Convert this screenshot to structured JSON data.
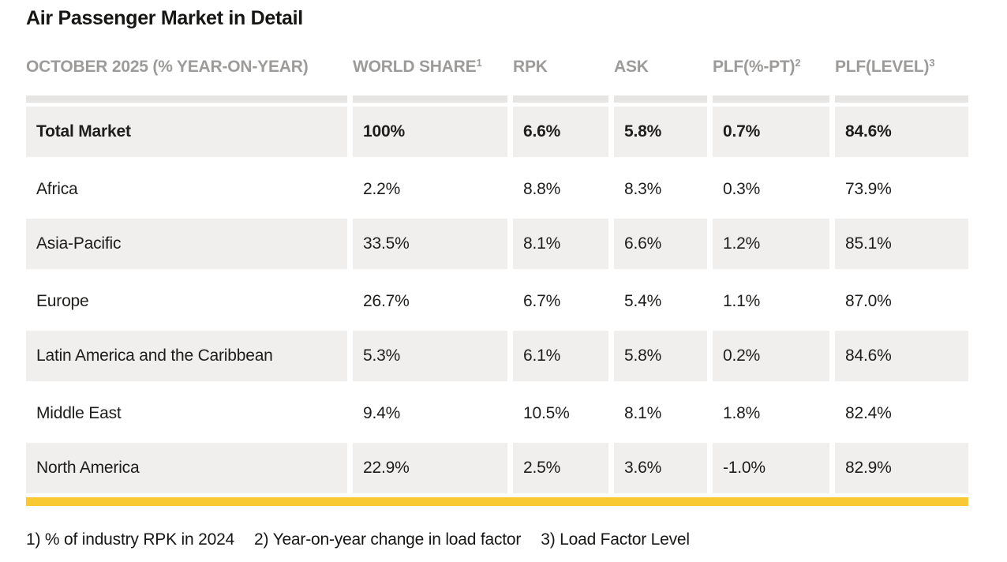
{
  "title": "Air Passenger Market in Detail",
  "table": {
    "columns": [
      {
        "label": "OCTOBER 2025 (% YEAR-ON-YEAR)",
        "sup": ""
      },
      {
        "label": "WORLD SHARE",
        "sup": "1"
      },
      {
        "label": "RPK",
        "sup": ""
      },
      {
        "label": "ASK",
        "sup": ""
      },
      {
        "label": "PLF(%-PT)",
        "sup": "2"
      },
      {
        "label": "PLF(LEVEL)",
        "sup": "3"
      }
    ],
    "rows": [
      {
        "region": "Total Market",
        "world_share": "100%",
        "rpk": "6.6%",
        "ask": "5.8%",
        "plf_pt": "0.7%",
        "plf_level": "84.6%"
      },
      {
        "region": "Africa",
        "world_share": "2.2%",
        "rpk": "8.8%",
        "ask": "8.3%",
        "plf_pt": "0.3%",
        "plf_level": "73.9%"
      },
      {
        "region": "Asia-Pacific",
        "world_share": "33.5%",
        "rpk": "8.1%",
        "ask": "6.6%",
        "plf_pt": "1.2%",
        "plf_level": "85.1%"
      },
      {
        "region": "Europe",
        "world_share": "26.7%",
        "rpk": "6.7%",
        "ask": "5.4%",
        "plf_pt": "1.1%",
        "plf_level": "87.0%"
      },
      {
        "region": "Latin America and the Caribbean",
        "world_share": "5.3%",
        "rpk": "6.1%",
        "ask": "5.8%",
        "plf_pt": "0.2%",
        "plf_level": "84.6%"
      },
      {
        "region": "Middle East",
        "world_share": "9.4%",
        "rpk": "10.5%",
        "ask": "8.1%",
        "plf_pt": "1.8%",
        "plf_level": "82.4%"
      },
      {
        "region": "North America",
        "world_share": "22.9%",
        "rpk": "2.5%",
        "ask": "3.6%",
        "plf_pt": "-1.0%",
        "plf_level": "82.9%"
      }
    ]
  },
  "footnotes": [
    "1) % of industry RPK in 2024",
    "2) Year-on-year change in load factor",
    "3) Load Factor Level"
  ],
  "colors": {
    "accent_yellow": "#f8c932",
    "row_shade": "#f0efee",
    "strip_shade": "#e6e5e3",
    "header_text": "#9c9b99",
    "body_text": "#1d1d1b"
  }
}
